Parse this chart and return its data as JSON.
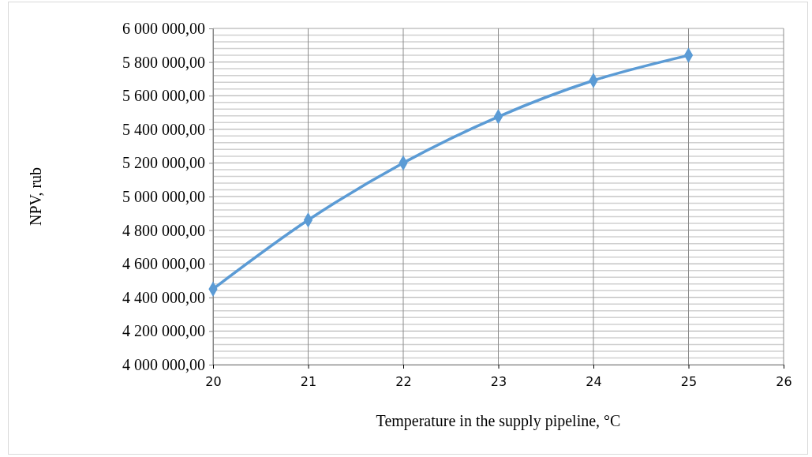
{
  "chart_data": {
    "type": "line",
    "xlabel": "Temperature in the supply pipeline, °C",
    "ylabel": "NPV, rub",
    "x": [
      20,
      21,
      22,
      23,
      24,
      25
    ],
    "series": [
      {
        "color": "#5b9bd5",
        "values": [
          4450000,
          4860000,
          5200000,
          5475000,
          5690000,
          5840000
        ]
      }
    ],
    "xlim": [
      20,
      26
    ],
    "xticks": [
      20,
      21,
      22,
      23,
      24,
      25,
      26
    ],
    "ylim": [
      4000000,
      6000000
    ],
    "yticks": [
      {
        "value": 4000000,
        "label": "4 000 000,00"
      },
      {
        "value": 4040000,
        "label": null
      },
      {
        "value": 4080000,
        "label": null
      },
      {
        "value": 4120000,
        "label": null
      },
      {
        "value": 4160000,
        "label": null
      },
      {
        "value": 4200000,
        "label": "4 200 000,00"
      },
      {
        "value": 4240000,
        "label": null
      },
      {
        "value": 4280000,
        "label": null
      },
      {
        "value": 4320000,
        "label": null
      },
      {
        "value": 4360000,
        "label": null
      },
      {
        "value": 4400000,
        "label": "4 400 000,00"
      },
      {
        "value": 4440000,
        "label": null
      },
      {
        "value": 4480000,
        "label": null
      },
      {
        "value": 4520000,
        "label": null
      },
      {
        "value": 4560000,
        "label": null
      },
      {
        "value": 4600000,
        "label": "4 600 000,00"
      },
      {
        "value": 4640000,
        "label": null
      },
      {
        "value": 4680000,
        "label": null
      },
      {
        "value": 4720000,
        "label": null
      },
      {
        "value": 4760000,
        "label": null
      },
      {
        "value": 4800000,
        "label": "4 800 000,00"
      },
      {
        "value": 4840000,
        "label": null
      },
      {
        "value": 4880000,
        "label": null
      },
      {
        "value": 4920000,
        "label": null
      },
      {
        "value": 4960000,
        "label": null
      },
      {
        "value": 5000000,
        "label": "5 000 000,00"
      },
      {
        "value": 5040000,
        "label": null
      },
      {
        "value": 5080000,
        "label": null
      },
      {
        "value": 5120000,
        "label": null
      },
      {
        "value": 5160000,
        "label": null
      },
      {
        "value": 5200000,
        "label": "5 200 000,00"
      },
      {
        "value": 5240000,
        "label": null
      },
      {
        "value": 5280000,
        "label": null
      },
      {
        "value": 5320000,
        "label": null
      },
      {
        "value": 5360000,
        "label": null
      },
      {
        "value": 5400000,
        "label": "5 400 000,00"
      },
      {
        "value": 5440000,
        "label": null
      },
      {
        "value": 5480000,
        "label": null
      },
      {
        "value": 5520000,
        "label": null
      },
      {
        "value": 5560000,
        "label": null
      },
      {
        "value": 5600000,
        "label": "5 600 000,00"
      },
      {
        "value": 5640000,
        "label": null
      },
      {
        "value": 5680000,
        "label": null
      },
      {
        "value": 5720000,
        "label": null
      },
      {
        "value": 5760000,
        "label": null
      },
      {
        "value": 5800000,
        "label": "5 800 000,00"
      },
      {
        "value": 5840000,
        "label": null
      },
      {
        "value": 5880000,
        "label": null
      },
      {
        "value": 5920000,
        "label": null
      },
      {
        "value": 5960000,
        "label": null
      },
      {
        "value": 6000000,
        "label": "6 000 000,00"
      }
    ],
    "grid": true,
    "marker": "diamond",
    "line_style": "solid"
  }
}
